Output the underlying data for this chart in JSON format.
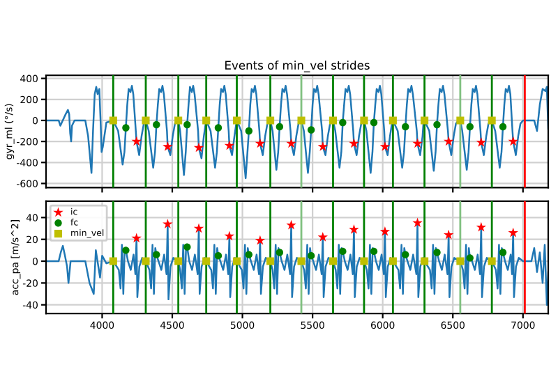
{
  "chart_data": [
    {
      "type": "line",
      "title": "Events of min_vel strides",
      "ylabel": "gyr_ml (°/s)",
      "xlim": [
        3600,
        7180
      ],
      "xticks": [
        4000,
        4500,
        5000,
        5500,
        6000,
        6500,
        7000
      ],
      "ylim": [
        -640,
        430
      ],
      "yticks": [
        -600,
        -400,
        -200,
        0,
        200,
        400
      ],
      "grid": true,
      "tick_labels": "y",
      "series": [
        {
          "color": "#1f77b4",
          "x": [
            3600,
            3690,
            3702,
            3740,
            3756,
            3765,
            3772,
            3779,
            3785,
            3803,
            3880,
            3900,
            3924,
            3935,
            3947,
            3958,
            3968,
            3980,
            3990,
            3996,
            4005,
            4030,
            4079,
            4114,
            4146,
            4159,
            4169,
            4179,
            4189,
            4202,
            4212,
            4222,
            4240,
            4245,
            4264,
            4281,
            4297,
            4311,
            4332,
            4364,
            4377,
            4387,
            4397,
            4407,
            4420,
            4430,
            4440,
            4462,
            4467,
            4486,
            4503,
            4519,
            4543,
            4556,
            4583,
            4596,
            4606,
            4616,
            4626,
            4639,
            4649,
            4659,
            4684,
            4689,
            4708,
            4725,
            4738,
            4742,
            4773,
            4805,
            4818,
            4828,
            4838,
            4848,
            4861,
            4871,
            4881,
            4902,
            4907,
            4926,
            4943,
            4956,
            4960,
            4991,
            5023,
            5036,
            5046,
            5056,
            5066,
            5079,
            5089,
            5099,
            5121,
            5126,
            5145,
            5162,
            5178,
            5199,
            5215,
            5242,
            5255,
            5265,
            5275,
            5285,
            5298,
            5308,
            5318,
            5343,
            5348,
            5367,
            5384,
            5400,
            5420,
            5438,
            5467,
            5480,
            5490,
            5500,
            5510,
            5523,
            5533,
            5543,
            5568,
            5573,
            5592,
            5609,
            5625,
            5646,
            5662,
            5692,
            5705,
            5715,
            5725,
            5735,
            5748,
            5758,
            5768,
            5790,
            5795,
            5814,
            5831,
            5847,
            5867,
            5884,
            5914,
            5927,
            5937,
            5947,
            5957,
            5970,
            5980,
            5990,
            6011,
            6016,
            6035,
            6052,
            6066,
            6073,
            6107,
            6139,
            6152,
            6162,
            6172,
            6182,
            6195,
            6205,
            6215,
            6243,
            6248,
            6267,
            6284,
            6290,
            6298,
            6332,
            6364,
            6377,
            6387,
            6397,
            6407,
            6420,
            6430,
            6440,
            6465,
            6470,
            6489,
            6506,
            6522,
            6540,
            6553,
            6567,
            6599,
            6612,
            6622,
            6632,
            6642,
            6655,
            6665,
            6675,
            6697,
            6702,
            6721,
            6738,
            6754,
            6778,
            6802,
            6834,
            6847,
            6857,
            6867,
            6877,
            6890,
            6900,
            6910,
            6925,
            6930,
            6949,
            6966,
            6982,
            7000,
            7080,
            7100,
            7120,
            7140,
            7160,
            7170,
            7180
          ],
          "values": [
            0,
            0,
            -50,
            60,
            100,
            60,
            -120,
            -200,
            -50,
            0,
            0,
            -150,
            -500,
            -100,
            250,
            320,
            250,
            300,
            -50,
            -300,
            -250,
            -20,
            0,
            -100,
            -420,
            -300,
            -70,
            150,
            300,
            270,
            330,
            250,
            -100,
            -200,
            -330,
            -150,
            -30,
            0,
            -100,
            -450,
            -300,
            -40,
            150,
            300,
            270,
            330,
            250,
            -100,
            -250,
            -330,
            -150,
            -30,
            0,
            -100,
            -520,
            -300,
            -40,
            150,
            320,
            270,
            330,
            250,
            -100,
            -260,
            -360,
            -150,
            -30,
            0,
            -100,
            -450,
            -300,
            -70,
            150,
            300,
            270,
            330,
            250,
            -100,
            -240,
            -330,
            -150,
            -30,
            0,
            -100,
            -550,
            -300,
            -100,
            150,
            300,
            270,
            330,
            250,
            -100,
            -220,
            -330,
            -150,
            -30,
            0,
            -100,
            -470,
            -300,
            -60,
            150,
            300,
            270,
            330,
            250,
            -100,
            -220,
            -330,
            -150,
            -30,
            0,
            -100,
            -500,
            -300,
            -90,
            150,
            300,
            270,
            330,
            250,
            -100,
            -250,
            -330,
            -150,
            -30,
            0,
            -100,
            -450,
            -300,
            -20,
            150,
            300,
            270,
            330,
            250,
            -100,
            -220,
            -330,
            -150,
            -30,
            0,
            -100,
            -500,
            -300,
            -20,
            150,
            300,
            270,
            330,
            250,
            -100,
            -250,
            -330,
            -150,
            -30,
            0,
            -100,
            -450,
            -300,
            -60,
            150,
            300,
            270,
            330,
            250,
            -100,
            -220,
            -330,
            -150,
            -30,
            0,
            -100,
            -480,
            -300,
            -40,
            150,
            300,
            270,
            330,
            250,
            -100,
            -200,
            -330,
            -150,
            -30,
            0,
            0,
            -100,
            -470,
            -300,
            -60,
            150,
            300,
            270,
            330,
            250,
            -100,
            -210,
            -330,
            -150,
            -30,
            0,
            -100,
            -450,
            -300,
            -60,
            150,
            300,
            270,
            330,
            250,
            -100,
            -200,
            -330,
            -150,
            -30,
            0,
            0,
            -100,
            150,
            300,
            280,
            320,
            -80
          ]
        },
        {
          "type": "scatter",
          "marker": "star",
          "color": "#ff0000",
          "x": [
            4245,
            4467,
            4689,
            4907,
            5126,
            5348,
            5573,
            5795,
            6016,
            6248,
            6470,
            6702,
            6930
          ],
          "values": [
            -200,
            -250,
            -260,
            -240,
            -220,
            -220,
            -250,
            -220,
            -250,
            -220,
            -200,
            -210,
            -200
          ]
        },
        {
          "type": "scatter",
          "marker": "circle",
          "color": "#008000",
          "x": [
            4169,
            4387,
            4606,
            4828,
            5046,
            5265,
            5490,
            5715,
            5937,
            6162,
            6387,
            6622,
            6857
          ],
          "values": [
            -70,
            -40,
            -40,
            -70,
            -100,
            -60,
            -90,
            -20,
            -20,
            -60,
            -40,
            -60,
            -60
          ]
        },
        {
          "type": "scatter",
          "marker": "square",
          "color": "#bfbf00",
          "x": [
            4079,
            4311,
            4543,
            4742,
            4960,
            5199,
            5420,
            5646,
            5867,
            6073,
            6298,
            6553,
            6778
          ],
          "values": [
            0,
            0,
            0,
            0,
            0,
            0,
            0,
            0,
            0,
            0,
            0,
            0,
            0
          ]
        }
      ],
      "ref_lines": [
        {
          "axis": "x",
          "value": 4079,
          "color": "#008000"
        },
        {
          "axis": "x",
          "value": 4311,
          "color": "#008000"
        },
        {
          "axis": "x",
          "value": 4543,
          "color": "#008000"
        },
        {
          "axis": "x",
          "value": 4742,
          "color": "#008000"
        },
        {
          "axis": "x",
          "value": 4960,
          "color": "#008000"
        },
        {
          "axis": "x",
          "value": 5199,
          "color": "#008000"
        },
        {
          "axis": "x",
          "value": 5420,
          "color": "#80c080"
        },
        {
          "axis": "x",
          "value": 5646,
          "color": "#008000"
        },
        {
          "axis": "x",
          "value": 5867,
          "color": "#008000"
        },
        {
          "axis": "x",
          "value": 6073,
          "color": "#008000"
        },
        {
          "axis": "x",
          "value": 6298,
          "color": "#008000"
        },
        {
          "axis": "x",
          "value": 6553,
          "color": "#80c080"
        },
        {
          "axis": "x",
          "value": 6778,
          "color": "#008000"
        },
        {
          "axis": "x",
          "value": 7013,
          "color": "#ff0000"
        }
      ]
    },
    {
      "type": "line",
      "ylabel": "acc_pa [m/s^2]",
      "xlim": [
        3600,
        7180
      ],
      "xticks": [
        4000,
        4500,
        5000,
        5500,
        6000,
        6500,
        7000
      ],
      "ylim": [
        -48,
        55
      ],
      "yticks": [
        -40,
        -20,
        0,
        20,
        40
      ],
      "grid": true,
      "legend": "top left",
      "series": [
        {
          "color": "#1f77b4",
          "x": [
            3600,
            3690,
            3705,
            3720,
            3735,
            3750,
            3760,
            3775,
            3800,
            3880,
            3910,
            3940,
            3955,
            3985,
            4000,
            4030,
            4079,
            4119,
            4131,
            4141,
            4151,
            4161,
            4169,
            4184,
            4204,
            4224,
            4237,
            4245,
            4251,
            4265,
            4285,
            4311,
            4337,
            4349,
            4359,
            4369,
            4379,
            4387,
            4402,
            4422,
            4442,
            4459,
            4467,
            4473,
            4487,
            4507,
            4543,
            4556,
            4568,
            4578,
            4588,
            4598,
            4606,
            4621,
            4641,
            4661,
            4681,
            4689,
            4695,
            4709,
            4729,
            4742,
            4778,
            4790,
            4800,
            4810,
            4820,
            4828,
            4843,
            4863,
            4883,
            4899,
            4907,
            4913,
            4927,
            4947,
            4960,
            4996,
            5008,
            5018,
            5028,
            5038,
            5046,
            5061,
            5081,
            5101,
            5118,
            5126,
            5132,
            5146,
            5166,
            5199,
            5215,
            5227,
            5237,
            5247,
            5257,
            5265,
            5280,
            5300,
            5320,
            5340,
            5348,
            5354,
            5368,
            5388,
            5420,
            5440,
            5452,
            5462,
            5472,
            5482,
            5490,
            5505,
            5525,
            5545,
            5565,
            5573,
            5579,
            5593,
            5613,
            5646,
            5665,
            5677,
            5687,
            5697,
            5707,
            5715,
            5730,
            5750,
            5770,
            5787,
            5795,
            5801,
            5815,
            5835,
            5867,
            5887,
            5899,
            5909,
            5919,
            5929,
            5937,
            5952,
            5972,
            5992,
            6008,
            6016,
            6022,
            6036,
            6056,
            6073,
            6112,
            6124,
            6134,
            6144,
            6154,
            6162,
            6177,
            6197,
            6217,
            6240,
            6248,
            6254,
            6268,
            6288,
            6298,
            6337,
            6349,
            6359,
            6369,
            6379,
            6387,
            6402,
            6422,
            6442,
            6462,
            6470,
            6476,
            6490,
            6510,
            6553,
            6572,
            6584,
            6594,
            6604,
            6614,
            6622,
            6637,
            6657,
            6677,
            6694,
            6702,
            6708,
            6722,
            6742,
            6778,
            6807,
            6819,
            6829,
            6839,
            6849,
            6857,
            6872,
            6892,
            6912,
            6922,
            6930,
            6936,
            6950,
            6970,
            7000,
            7060,
            7080,
            7100,
            7120,
            7140,
            7155,
            7170,
            7180
          ],
          "values": [
            0,
            0,
            8,
            14,
            5,
            -5,
            -20,
            0,
            0,
            0,
            -20,
            -30,
            10,
            -15,
            5,
            -2,
            0,
            -8,
            -25,
            15,
            -30,
            12,
            10,
            0,
            -8,
            6,
            -12,
            21,
            -33,
            -5,
            3,
            0,
            -8,
            -25,
            15,
            -30,
            12,
            6,
            0,
            -8,
            6,
            -12,
            34,
            -35,
            -5,
            3,
            0,
            -8,
            -25,
            15,
            -30,
            12,
            13,
            0,
            -8,
            6,
            -12,
            30,
            -30,
            -5,
            3,
            0,
            -8,
            -25,
            15,
            -30,
            12,
            5,
            0,
            -8,
            6,
            -12,
            23,
            -33,
            -5,
            3,
            0,
            -8,
            -25,
            15,
            -30,
            12,
            6,
            0,
            -8,
            6,
            -12,
            19,
            -30,
            -5,
            3,
            0,
            -8,
            -25,
            15,
            -30,
            12,
            8,
            0,
            -8,
            6,
            -12,
            33,
            -33,
            -5,
            3,
            0,
            -8,
            -25,
            15,
            -30,
            12,
            5,
            0,
            -8,
            6,
            -12,
            22,
            -33,
            -5,
            3,
            0,
            -8,
            -25,
            15,
            -30,
            12,
            9,
            0,
            -8,
            6,
            -12,
            29,
            -33,
            -5,
            3,
            0,
            -8,
            -25,
            15,
            -30,
            12,
            9,
            0,
            -8,
            6,
            -12,
            27,
            -33,
            -5,
            3,
            0,
            -8,
            -25,
            15,
            -30,
            12,
            6,
            0,
            -8,
            6,
            -12,
            35,
            -33,
            -5,
            3,
            0,
            -8,
            -25,
            15,
            -30,
            12,
            8,
            0,
            -8,
            6,
            -12,
            24,
            -33,
            -5,
            3,
            0,
            -8,
            -25,
            15,
            -30,
            12,
            3,
            0,
            -8,
            6,
            -12,
            31,
            -33,
            -5,
            3,
            0,
            -8,
            -25,
            15,
            -30,
            12,
            8,
            0,
            -8,
            6,
            -12,
            26,
            -33,
            -5,
            3,
            0,
            0,
            12,
            -10,
            8,
            -20,
            15,
            -40,
            -10
          ]
        },
        {
          "type": "scatter",
          "name": "ic",
          "marker": "star",
          "color": "#ff0000",
          "x": [
            4245,
            4467,
            4689,
            4907,
            5126,
            5348,
            5573,
            5795,
            6016,
            6248,
            6470,
            6702,
            6930
          ],
          "values": [
            21,
            34,
            30,
            23,
            19,
            33,
            22,
            29,
            27,
            35,
            24,
            31,
            26
          ]
        },
        {
          "type": "scatter",
          "name": "fc",
          "marker": "circle",
          "color": "#008000",
          "x": [
            4169,
            4387,
            4606,
            4828,
            5046,
            5265,
            5490,
            5715,
            5937,
            6162,
            6387,
            6622,
            6857
          ],
          "values": [
            10,
            6,
            13,
            5,
            6,
            8,
            5,
            9,
            9,
            6,
            8,
            3,
            8
          ]
        },
        {
          "type": "scatter",
          "name": "min_vel",
          "marker": "square",
          "color": "#bfbf00",
          "x": [
            4079,
            4311,
            4543,
            4742,
            4960,
            5199,
            5420,
            5646,
            5867,
            6073,
            6298,
            6553,
            6778
          ],
          "values": [
            0,
            0,
            0,
            0,
            0,
            0,
            0,
            0,
            0,
            0,
            0,
            0,
            0
          ]
        }
      ],
      "ref_lines": [
        {
          "axis": "x",
          "value": 4079,
          "color": "#008000"
        },
        {
          "axis": "x",
          "value": 4311,
          "color": "#008000"
        },
        {
          "axis": "x",
          "value": 4543,
          "color": "#008000"
        },
        {
          "axis": "x",
          "value": 4742,
          "color": "#008000"
        },
        {
          "axis": "x",
          "value": 4960,
          "color": "#008000"
        },
        {
          "axis": "x",
          "value": 5199,
          "color": "#008000"
        },
        {
          "axis": "x",
          "value": 5420,
          "color": "#80c080"
        },
        {
          "axis": "x",
          "value": 5646,
          "color": "#008000"
        },
        {
          "axis": "x",
          "value": 5867,
          "color": "#008000"
        },
        {
          "axis": "x",
          "value": 6073,
          "color": "#008000"
        },
        {
          "axis": "x",
          "value": 6298,
          "color": "#008000"
        },
        {
          "axis": "x",
          "value": 6553,
          "color": "#80c080"
        },
        {
          "axis": "x",
          "value": 6778,
          "color": "#008000"
        },
        {
          "axis": "x",
          "value": 7013,
          "color": "#ff0000"
        }
      ]
    }
  ]
}
